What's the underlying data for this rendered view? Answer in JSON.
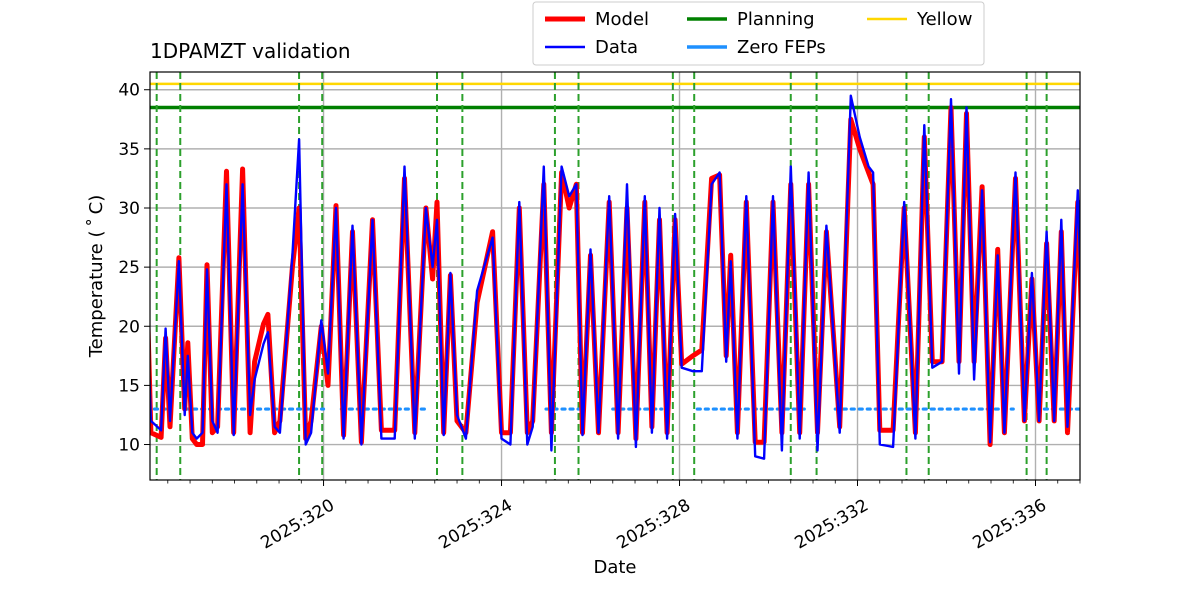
{
  "chart_data": {
    "type": "line",
    "title": "1DPAMZT validation",
    "xlabel": "Date",
    "ylabel": "Temperature ($^\\circ$C)",
    "ylabel_display": "Temperature ( ˚ C)",
    "xlim": [
      316.1,
      337.0
    ],
    "ylim": [
      7.0,
      41.5
    ],
    "grid": true,
    "legend_location": "upper-center-outside",
    "x_ticks": [
      {
        "value": 320,
        "label": "2025:320"
      },
      {
        "value": 324,
        "label": "2025:324"
      },
      {
        "value": 328,
        "label": "2025:328"
      },
      {
        "value": 332,
        "label": "2025:332"
      },
      {
        "value": 336,
        "label": "2025:336"
      }
    ],
    "y_ticks": [
      10,
      15,
      20,
      25,
      30,
      35,
      40
    ],
    "x_minor_step": 0.5,
    "series": [
      {
        "name": "Model",
        "color": "#ff0000",
        "width": "thick",
        "points": [
          [
            316.05,
            20.5
          ],
          [
            316.12,
            11.0
          ],
          [
            316.35,
            10.6
          ],
          [
            316.45,
            19.0
          ],
          [
            316.55,
            11.5
          ],
          [
            316.75,
            25.8
          ],
          [
            316.88,
            13.0
          ],
          [
            316.95,
            18.6
          ],
          [
            317.05,
            10.5
          ],
          [
            317.15,
            10.0
          ],
          [
            317.28,
            10.0
          ],
          [
            317.38,
            25.2
          ],
          [
            317.5,
            11.0
          ],
          [
            317.62,
            11.5
          ],
          [
            317.82,
            33.1
          ],
          [
            317.98,
            11.0
          ],
          [
            318.18,
            33.3
          ],
          [
            318.35,
            11.0
          ],
          [
            318.45,
            17.0
          ],
          [
            318.65,
            20.2
          ],
          [
            318.75,
            21.0
          ],
          [
            318.9,
            11.0
          ],
          [
            319.02,
            12.0
          ],
          [
            319.3,
            25.0
          ],
          [
            319.45,
            30.0
          ],
          [
            319.6,
            10.5
          ],
          [
            319.72,
            12.0
          ],
          [
            319.95,
            20.0
          ],
          [
            320.1,
            15.0
          ],
          [
            320.28,
            30.2
          ],
          [
            320.45,
            10.8
          ],
          [
            320.65,
            28.0
          ],
          [
            320.85,
            10.2
          ],
          [
            321.1,
            29.0
          ],
          [
            321.3,
            11.2
          ],
          [
            321.6,
            11.2
          ],
          [
            321.82,
            32.5
          ],
          [
            322.05,
            11.0
          ],
          [
            322.3,
            30.0
          ],
          [
            322.45,
            24.0
          ],
          [
            322.55,
            30.5
          ],
          [
            322.7,
            11.0
          ],
          [
            322.85,
            24.3
          ],
          [
            323.0,
            12.0
          ],
          [
            323.2,
            11.0
          ],
          [
            323.45,
            22.0
          ],
          [
            323.8,
            28.0
          ],
          [
            324.0,
            11.0
          ],
          [
            324.2,
            11.0
          ],
          [
            324.4,
            30.0
          ],
          [
            324.58,
            11.0
          ],
          [
            324.7,
            12.0
          ],
          [
            324.95,
            32.0
          ],
          [
            325.12,
            11.0
          ],
          [
            325.35,
            33.0
          ],
          [
            325.52,
            30.0
          ],
          [
            325.68,
            32.0
          ],
          [
            325.82,
            11.0
          ],
          [
            326.0,
            26.0
          ],
          [
            326.18,
            11.0
          ],
          [
            326.42,
            30.5
          ],
          [
            326.62,
            11.0
          ],
          [
            326.82,
            30.0
          ],
          [
            327.02,
            10.5
          ],
          [
            327.22,
            30.5
          ],
          [
            327.38,
            11.5
          ],
          [
            327.55,
            29.0
          ],
          [
            327.72,
            11.0
          ],
          [
            327.9,
            29.0
          ],
          [
            328.05,
            16.8
          ],
          [
            328.3,
            17.5
          ],
          [
            328.5,
            18.0
          ],
          [
            328.72,
            32.5
          ],
          [
            328.9,
            32.8
          ],
          [
            329.05,
            17.5
          ],
          [
            329.15,
            26.0
          ],
          [
            329.3,
            11.0
          ],
          [
            329.5,
            30.5
          ],
          [
            329.7,
            10.2
          ],
          [
            329.9,
            10.2
          ],
          [
            330.1,
            30.5
          ],
          [
            330.3,
            11.0
          ],
          [
            330.5,
            32.0
          ],
          [
            330.7,
            11.0
          ],
          [
            330.9,
            32.0
          ],
          [
            331.1,
            11.0
          ],
          [
            331.3,
            28.0
          ],
          [
            331.6,
            11.5
          ],
          [
            331.85,
            37.5
          ],
          [
            332.05,
            35.0
          ],
          [
            332.25,
            33.0
          ],
          [
            332.35,
            32.0
          ],
          [
            332.5,
            11.2
          ],
          [
            332.8,
            11.2
          ],
          [
            333.05,
            30.0
          ],
          [
            333.3,
            11.0
          ],
          [
            333.5,
            36.0
          ],
          [
            333.68,
            17.0
          ],
          [
            333.9,
            17.0
          ],
          [
            334.1,
            38.5
          ],
          [
            334.28,
            17.0
          ],
          [
            334.45,
            38.0
          ],
          [
            334.62,
            17.0
          ],
          [
            334.8,
            31.8
          ],
          [
            334.98,
            10.0
          ],
          [
            335.15,
            26.5
          ],
          [
            335.3,
            11.0
          ],
          [
            335.55,
            32.5
          ],
          [
            335.75,
            12.0
          ],
          [
            335.92,
            24.0
          ],
          [
            336.08,
            12.0
          ],
          [
            336.25,
            27.0
          ],
          [
            336.42,
            12.0
          ],
          [
            336.58,
            28.0
          ],
          [
            336.72,
            11.0
          ],
          [
            336.95,
            30.5
          ],
          [
            337.1,
            13.5
          ],
          [
            337.35,
            30.5
          ],
          [
            337.55,
            14.0
          ],
          [
            337.75,
            30.0
          ],
          [
            337.95,
            22.0
          ],
          [
            338.05,
            21.0
          ],
          [
            338.2,
            12.5
          ],
          [
            338.42,
            29.0
          ],
          [
            338.65,
            18.0
          ],
          [
            338.88,
            31.0
          ],
          [
            339.0,
            23.0
          ]
        ]
      },
      {
        "name": "Data",
        "color": "#0000ff",
        "width": "normal",
        "points": [
          [
            316.05,
            19.5
          ],
          [
            316.12,
            12.0
          ],
          [
            316.35,
            11.2
          ],
          [
            316.45,
            19.8
          ],
          [
            316.55,
            12.0
          ],
          [
            316.75,
            25.5
          ],
          [
            316.88,
            12.5
          ],
          [
            316.95,
            17.5
          ],
          [
            317.05,
            11.0
          ],
          [
            317.15,
            10.5
          ],
          [
            317.28,
            11.0
          ],
          [
            317.38,
            24.8
          ],
          [
            317.5,
            12.0
          ],
          [
            317.62,
            11.0
          ],
          [
            317.82,
            32.0
          ],
          [
            317.98,
            10.8
          ],
          [
            318.18,
            32.0
          ],
          [
            318.35,
            12.5
          ],
          [
            318.45,
            15.5
          ],
          [
            318.65,
            18.5
          ],
          [
            318.75,
            19.5
          ],
          [
            318.9,
            11.5
          ],
          [
            319.02,
            11.0
          ],
          [
            319.3,
            26.0
          ],
          [
            319.45,
            35.8
          ],
          [
            319.6,
            10.0
          ],
          [
            319.72,
            11.0
          ],
          [
            319.95,
            20.5
          ],
          [
            320.1,
            16.0
          ],
          [
            320.28,
            30.0
          ],
          [
            320.45,
            10.5
          ],
          [
            320.65,
            28.5
          ],
          [
            320.85,
            10.0
          ],
          [
            321.1,
            29.0
          ],
          [
            321.3,
            10.5
          ],
          [
            321.6,
            10.5
          ],
          [
            321.82,
            33.5
          ],
          [
            322.05,
            10.5
          ],
          [
            322.3,
            30.0
          ],
          [
            322.45,
            25.0
          ],
          [
            322.55,
            29.0
          ],
          [
            322.7,
            10.8
          ],
          [
            322.85,
            24.5
          ],
          [
            323.0,
            12.5
          ],
          [
            323.2,
            10.5
          ],
          [
            323.45,
            23.0
          ],
          [
            323.8,
            27.5
          ],
          [
            324.0,
            10.5
          ],
          [
            324.2,
            10.0
          ],
          [
            324.4,
            30.5
          ],
          [
            324.58,
            10.0
          ],
          [
            324.7,
            11.5
          ],
          [
            324.95,
            33.5
          ],
          [
            325.12,
            9.5
          ],
          [
            325.35,
            33.5
          ],
          [
            325.52,
            31.0
          ],
          [
            325.68,
            32.0
          ],
          [
            325.82,
            10.8
          ],
          [
            326.0,
            26.5
          ],
          [
            326.18,
            11.0
          ],
          [
            326.42,
            31.0
          ],
          [
            326.62,
            10.5
          ],
          [
            326.82,
            32.0
          ],
          [
            327.02,
            9.8
          ],
          [
            327.22,
            31.0
          ],
          [
            327.38,
            11.0
          ],
          [
            327.55,
            30.0
          ],
          [
            327.72,
            10.5
          ],
          [
            327.9,
            29.5
          ],
          [
            328.05,
            16.5
          ],
          [
            328.3,
            16.2
          ],
          [
            328.5,
            16.2
          ],
          [
            328.72,
            32.0
          ],
          [
            328.9,
            33.0
          ],
          [
            329.05,
            17.0
          ],
          [
            329.15,
            25.5
          ],
          [
            329.3,
            10.5
          ],
          [
            329.5,
            31.0
          ],
          [
            329.7,
            9.0
          ],
          [
            329.9,
            8.8
          ],
          [
            330.1,
            31.0
          ],
          [
            330.3,
            9.5
          ],
          [
            330.5,
            33.5
          ],
          [
            330.7,
            10.5
          ],
          [
            330.9,
            33.0
          ],
          [
            331.1,
            9.5
          ],
          [
            331.3,
            28.5
          ],
          [
            331.6,
            11.0
          ],
          [
            331.85,
            39.5
          ],
          [
            332.05,
            36.0
          ],
          [
            332.25,
            33.5
          ],
          [
            332.35,
            33.0
          ],
          [
            332.5,
            10.0
          ],
          [
            332.8,
            9.8
          ],
          [
            333.05,
            30.5
          ],
          [
            333.3,
            10.5
          ],
          [
            333.5,
            37.0
          ],
          [
            333.68,
            16.5
          ],
          [
            333.9,
            17.0
          ],
          [
            334.1,
            39.2
          ],
          [
            334.28,
            16.0
          ],
          [
            334.45,
            38.5
          ],
          [
            334.62,
            15.5
          ],
          [
            334.8,
            31.5
          ],
          [
            334.98,
            10.2
          ],
          [
            335.15,
            26.0
          ],
          [
            335.3,
            11.0
          ],
          [
            335.55,
            33.0
          ],
          [
            335.75,
            12.0
          ],
          [
            335.92,
            24.5
          ],
          [
            336.08,
            12.0
          ],
          [
            336.25,
            28.0
          ],
          [
            336.42,
            12.0
          ],
          [
            336.58,
            29.0
          ],
          [
            336.72,
            11.5
          ],
          [
            336.95,
            31.5
          ],
          [
            337.1,
            13.0
          ],
          [
            337.35,
            31.0
          ],
          [
            337.55,
            13.5
          ],
          [
            337.75,
            32.0
          ],
          [
            337.95,
            23.5
          ],
          [
            338.05,
            22.0
          ],
          [
            338.2,
            12.0
          ],
          [
            338.42,
            30.0
          ],
          [
            338.65,
            16.5
          ],
          [
            338.88,
            31.0
          ],
          [
            339.0,
            22.5
          ]
        ]
      }
    ],
    "reference_lines": [
      {
        "name": "Planning",
        "value": 38.5,
        "color": "#008000"
      },
      {
        "name": "Yellow",
        "value": 40.5,
        "color": "#ffd700"
      }
    ],
    "zero_feps": {
      "name": "Zero FEPs",
      "value": 13.0,
      "color": "#1e90ff",
      "segments": [
        [
          316.2,
          316.5
        ],
        [
          316.9,
          320.0
        ],
        [
          320.4,
          322.3
        ],
        [
          325.0,
          325.8
        ],
        [
          326.5,
          327.6
        ],
        [
          328.4,
          330.9
        ],
        [
          331.5,
          335.5
        ],
        [
          336.2,
          337.0
        ]
      ]
    },
    "dashed_vlines": {
      "color": "#2ca02c",
      "values": [
        316.25,
        316.78,
        319.45,
        319.97,
        322.55,
        323.12,
        325.2,
        325.73,
        327.85,
        328.33,
        330.5,
        331.08,
        333.1,
        333.6,
        335.8,
        336.25
      ]
    },
    "legend": [
      {
        "label": "Model",
        "color": "#ff0000",
        "style": "thick"
      },
      {
        "label": "Data",
        "color": "#0000ff",
        "style": "normal"
      },
      {
        "label": "Planning",
        "color": "#008000",
        "style": "normal"
      },
      {
        "label": "Zero FEPs",
        "color": "#1e90ff",
        "style": "normal"
      },
      {
        "label": "Yellow",
        "color": "#ffd700",
        "style": "normal"
      }
    ]
  }
}
